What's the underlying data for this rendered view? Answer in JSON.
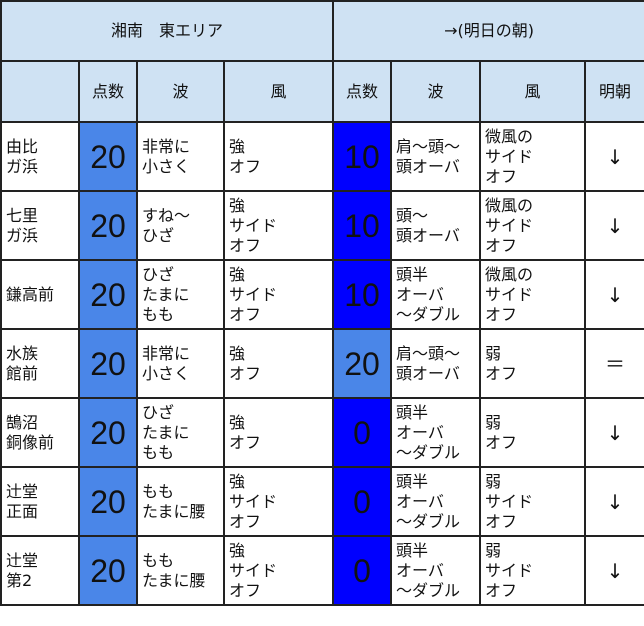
{
  "colors": {
    "header": "#cfe2f3",
    "score20": "#4a86e8",
    "scoreLow": "#0000ff"
  },
  "header": {
    "area": "湘南　東エリア",
    "tomorrow": "→(明日の朝)"
  },
  "columns": [
    "",
    "点数",
    "波",
    "風",
    "点数",
    "波",
    "風",
    "明朝"
  ],
  "rows": [
    {
      "place": "由比\nガ浜",
      "score": "20",
      "wave": "非常に\n小さく",
      "wind": "強\nオフ",
      "t_score": "10",
      "t_wave": "肩〜頭〜\n頭オーバ",
      "t_wind": "微風の\nサイド\nオフ",
      "trend": "↓"
    },
    {
      "place": "七里\nガ浜",
      "score": "20",
      "wave": "すね〜\nひざ",
      "wind": "強\nサイド\nオフ",
      "t_score": "10",
      "t_wave": "頭〜\n頭オーバ",
      "t_wind": "微風の\nサイド\nオフ",
      "trend": "↓"
    },
    {
      "place": "鎌高前",
      "score": "20",
      "wave": "ひざ\nたまに\nもも",
      "wind": "強\nサイド\nオフ",
      "t_score": "10",
      "t_wave": "頭半\nオーバ\n〜ダブル",
      "t_wind": "微風の\nサイド\nオフ",
      "trend": "↓"
    },
    {
      "place": "水族\n館前",
      "score": "20",
      "wave": "非常に\n小さく",
      "wind": "強\nオフ",
      "t_score": "20",
      "t_wave": "肩〜頭〜\n頭オーバ",
      "t_wind": "弱\nオフ",
      "trend": "＝"
    },
    {
      "place": "鵠沼\n銅像前",
      "score": "20",
      "wave": "ひざ\nたまに\nもも",
      "wind": "強\nオフ",
      "t_score": "0",
      "t_wave": "頭半\nオーバ\n〜ダブル",
      "t_wind": "弱\nオフ",
      "trend": "↓"
    },
    {
      "place": "辻堂\n正面",
      "score": "20",
      "wave": "もも\nたまに腰",
      "wind": "強\nサイド\nオフ",
      "t_score": "0",
      "t_wave": "頭半\nオーバ\n〜ダブル",
      "t_wind": "弱\nサイド\nオフ",
      "trend": "↓"
    },
    {
      "place": "辻堂\n第2",
      "score": "20",
      "wave": "もも\nたまに腰",
      "wind": "強\nサイド\nオフ",
      "t_score": "0",
      "t_wave": "頭半\nオーバ\n〜ダブル",
      "t_wind": "弱\nサイド\nオフ",
      "trend": "↓"
    }
  ]
}
